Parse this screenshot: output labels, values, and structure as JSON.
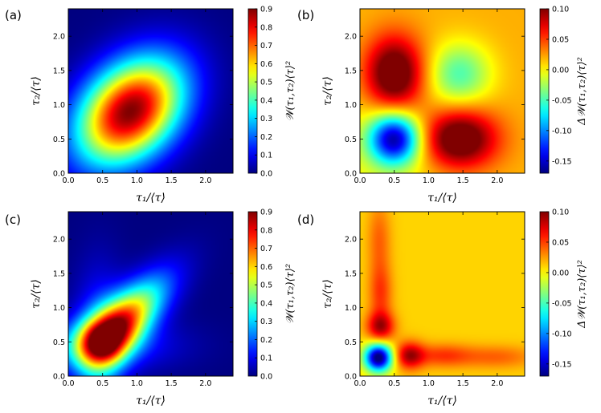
{
  "colors": {
    "colormap": "jet",
    "frame": "#000000",
    "background": "#ffffff"
  },
  "chart_data": [
    {
      "type": "heatmap",
      "panel_label": "(a)",
      "field": "peak",
      "xlabel": "τ₁/⟨τ⟩",
      "ylabel": "τ₂/⟨τ⟩",
      "xlim": [
        0,
        2.4
      ],
      "ylim": [
        0,
        2.4
      ],
      "xticks": [
        "0.0",
        "0.5",
        "1.0",
        "1.5",
        "2.0"
      ],
      "yticks": [
        "0.0",
        "0.5",
        "1.0",
        "1.5",
        "2.0"
      ],
      "colorbar_label": "𝒲(τ₁,τ₂)⟨τ⟩²",
      "clim": [
        0,
        0.9
      ],
      "colorbar_ticks": [
        "0.0",
        "0.1",
        "0.2",
        "0.3",
        "0.4",
        "0.5",
        "0.6",
        "0.7",
        "0.8",
        "0.9"
      ],
      "features": [
        {
          "kind": "peak",
          "x": 0.9,
          "y": 0.9,
          "value": 0.9
        }
      ]
    },
    {
      "type": "heatmap",
      "panel_label": "(b)",
      "field": "quad",
      "xlabel": "τ₁/⟨τ⟩",
      "ylabel": "τ₂/⟨τ⟩",
      "xlim": [
        0,
        2.4
      ],
      "ylim": [
        0,
        2.4
      ],
      "xticks": [
        "0.0",
        "0.5",
        "1.0",
        "1.5",
        "2.0"
      ],
      "yticks": [
        "0.0",
        "0.5",
        "1.0",
        "1.5",
        "2.0"
      ],
      "colorbar_label": "Δ𝒲(τ₁,τ₂)⟨τ⟩²",
      "clim": [
        -0.17,
        0.1
      ],
      "colorbar_ticks": [
        "0.10",
        "0.05",
        "0.00",
        "-0.05",
        "-0.10",
        "-0.15"
      ],
      "features": [
        {
          "kind": "max",
          "x": 0.5,
          "y": 1.45,
          "value": 0.1
        },
        {
          "kind": "max",
          "x": 1.45,
          "y": 0.5,
          "value": 0.1
        },
        {
          "kind": "min",
          "x": 0.5,
          "y": 0.5,
          "value": -0.16
        },
        {
          "kind": "min",
          "x": 1.45,
          "y": 1.45,
          "value": -0.06
        }
      ]
    },
    {
      "type": "heatmap",
      "panel_label": "(c)",
      "field": "lowpeak",
      "xlabel": "τ₁/⟨τ⟩",
      "ylabel": "τ₂/⟨τ⟩",
      "xlim": [
        0,
        2.4
      ],
      "ylim": [
        0,
        2.4
      ],
      "xticks": [
        "0.0",
        "0.5",
        "1.0",
        "1.5",
        "2.0"
      ],
      "yticks": [
        "0.0",
        "0.5",
        "1.0",
        "1.5",
        "2.0"
      ],
      "colorbar_label": "𝒲(τ₁,τ₂)⟨τ⟩²",
      "clim": [
        0,
        0.9
      ],
      "colorbar_ticks": [
        "0.0",
        "0.1",
        "0.2",
        "0.3",
        "0.4",
        "0.5",
        "0.6",
        "0.7",
        "0.8",
        "0.9"
      ],
      "features": [
        {
          "kind": "peak",
          "x": 0.47,
          "y": 0.47,
          "value": 0.9
        }
      ]
    },
    {
      "type": "heatmap",
      "panel_label": "(d)",
      "field": "cross",
      "xlabel": "τ₁/⟨τ⟩",
      "ylabel": "τ₂/⟨τ⟩",
      "xlim": [
        0,
        2.4
      ],
      "ylim": [
        0,
        2.4
      ],
      "xticks": [
        "0.0",
        "0.5",
        "1.0",
        "1.5",
        "2.0"
      ],
      "yticks": [
        "0.0",
        "0.5",
        "1.0",
        "1.5",
        "2.0"
      ],
      "colorbar_label": "Δ𝒲(τ₁,τ₂)⟨τ⟩²",
      "clim": [
        -0.17,
        0.1
      ],
      "colorbar_ticks": [
        "0.10",
        "0.05",
        "0.00",
        "-0.05",
        "-0.10",
        "-0.15"
      ],
      "features": [
        {
          "kind": "min",
          "x": 0.27,
          "y": 0.27,
          "value": -0.16
        },
        {
          "kind": "max",
          "x": 0.3,
          "y": 0.7,
          "value": 0.07
        },
        {
          "kind": "max",
          "x": 0.7,
          "y": 0.3,
          "value": 0.07
        }
      ]
    }
  ]
}
